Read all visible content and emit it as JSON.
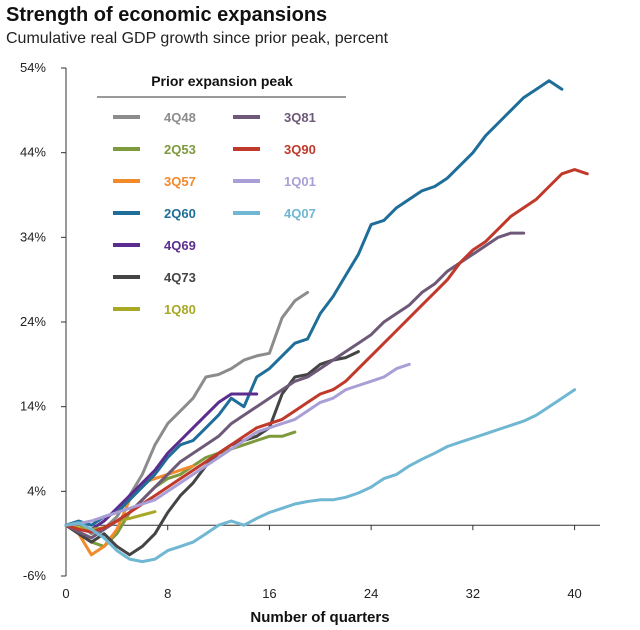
{
  "chart_data": {
    "type": "line",
    "title": "Strength of economic expansions",
    "subtitle": "Cumulative real GDP growth since prior peak, percent",
    "xlabel": "Number of quarters",
    "ylabel": "",
    "xlim": [
      0,
      42
    ],
    "ylim": [
      -6,
      54
    ],
    "x_ticks": [
      0,
      8,
      16,
      24,
      32,
      40
    ],
    "y_ticks": [
      -6,
      4,
      14,
      24,
      34,
      44,
      54
    ],
    "y_tick_labels": [
      "-6%",
      "4%",
      "14%",
      "24%",
      "34%",
      "44%",
      "54%"
    ],
    "grid": false,
    "legend": {
      "title": "Prior expansion peak",
      "placement": "top-left"
    },
    "series": [
      {
        "name": "4Q48",
        "color": "#8c8c8c",
        "values": [
          0,
          0.2,
          -1,
          -0.4,
          1,
          3.5,
          6,
          9.5,
          12,
          13.5,
          15,
          17.5,
          17.8,
          18.5,
          19.5,
          20,
          20.3,
          24.5,
          26.5,
          27.5
        ]
      },
      {
        "name": "2Q53",
        "color": "#7d9a3c",
        "values": [
          0,
          -0.8,
          -2,
          -2.5,
          -1,
          1.5,
          3,
          4.5,
          5.5,
          6,
          7,
          8,
          8.5,
          9,
          9.5,
          10,
          10.5,
          10.5,
          11
        ]
      },
      {
        "name": "3Q57",
        "color": "#f28a2c",
        "values": [
          0,
          -1,
          -3.5,
          -2.5,
          -0.5,
          3,
          5,
          5.5,
          6,
          6.5,
          7
        ]
      },
      {
        "name": "2Q60",
        "color": "#1e6e99",
        "values": [
          0,
          0.5,
          0,
          1,
          1.5,
          3,
          4.5,
          6,
          8,
          9.5,
          10,
          11.5,
          13,
          15,
          14,
          17.5,
          18.5,
          20,
          21.5,
          22,
          25,
          27,
          29.5,
          32,
          35.5,
          36,
          37.5,
          38.5,
          39.5,
          40,
          41,
          42.5,
          44,
          46,
          47.5,
          49,
          50.5,
          51.5,
          52.5,
          51.5
        ]
      },
      {
        "name": "4Q69",
        "color": "#5c2d8f",
        "values": [
          0,
          -0.5,
          -0.5,
          0.5,
          2,
          3.5,
          5,
          6.5,
          8.5,
          10,
          11.5,
          13,
          14.5,
          15.5,
          15.5,
          15.5
        ]
      },
      {
        "name": "4Q73",
        "color": "#444444",
        "values": [
          0,
          -1,
          -2,
          -1,
          -2.5,
          -3.5,
          -2.5,
          -1,
          1.5,
          3.5,
          5,
          7,
          8.5,
          9.5,
          10,
          10.5,
          11.5,
          15.5,
          17.5,
          17.8,
          19,
          19.5,
          19.8,
          20.5
        ]
      },
      {
        "name": "1Q80",
        "color": "#a8a827",
        "values": [
          0,
          -0.3,
          -0.5,
          -0.3,
          0.5,
          0.8,
          1.2,
          1.6
        ]
      },
      {
        "name": "3Q81",
        "color": "#6e5a78",
        "values": [
          0,
          -0.8,
          -1.5,
          -0.5,
          0.5,
          1.5,
          3,
          4.5,
          6,
          7.5,
          8.5,
          9.5,
          10.5,
          12,
          13,
          14,
          15,
          16,
          17,
          17.5,
          18.5,
          19.5,
          20.5,
          21.5,
          22.5,
          24,
          25,
          26,
          27.5,
          28.5,
          30,
          31,
          32,
          33,
          34,
          34.5,
          34.5
        ]
      },
      {
        "name": "3Q90",
        "color": "#c0392b",
        "values": [
          0,
          -0.5,
          -0.8,
          -0.3,
          0.5,
          1.5,
          2.5,
          3.5,
          4.5,
          5.5,
          6.5,
          7.5,
          8.5,
          9.5,
          10.5,
          11.5,
          12,
          12.5,
          13.5,
          14.5,
          15.5,
          16,
          17,
          18.5,
          20,
          21.5,
          23,
          24.5,
          26,
          27.5,
          29,
          31,
          32.5,
          33.5,
          35,
          36.5,
          37.5,
          38.5,
          40,
          41.5,
          42,
          41.5
        ]
      },
      {
        "name": "1Q01",
        "color": "#a99fd6",
        "values": [
          0,
          0.2,
          0.5,
          1,
          1.5,
          2,
          2.5,
          3,
          4,
          5,
          6,
          7,
          8,
          9,
          10,
          11,
          11.5,
          12,
          12.5,
          13.5,
          14.5,
          15,
          16,
          16.5,
          17,
          17.5,
          18.5,
          19
        ]
      },
      {
        "name": "4Q07",
        "color": "#6fb7d2",
        "values": [
          0,
          0.3,
          -0.5,
          -1.5,
          -3,
          -4,
          -4.3,
          -4,
          -3,
          -2.5,
          -2,
          -1,
          0,
          0.5,
          0,
          0.8,
          1.5,
          2,
          2.5,
          2.8,
          3,
          3,
          3.3,
          3.8,
          4.5,
          5.5,
          6,
          7,
          7.8,
          8.5,
          9.3,
          9.8,
          10.3,
          10.8,
          11.3,
          11.8,
          12.3,
          13,
          14,
          15,
          16
        ]
      }
    ]
  }
}
